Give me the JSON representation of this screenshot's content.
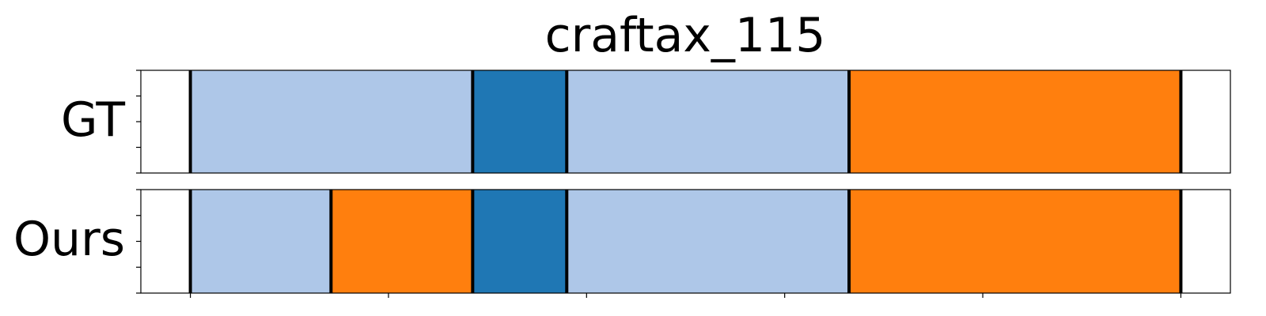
{
  "chart_data": {
    "type": "segmentation-timeline",
    "title": "craftax_115",
    "x_range": [
      -0.5,
      10.5
    ],
    "rows": [
      {
        "label": "GT",
        "segments": [
          {
            "start": 0.0,
            "end": 2.85,
            "color": "#aec7e8"
          },
          {
            "start": 2.85,
            "end": 3.8,
            "color": "#1f77b4"
          },
          {
            "start": 3.8,
            "end": 6.65,
            "color": "#aec7e8"
          },
          {
            "start": 6.65,
            "end": 10.0,
            "color": "#ff7f0e"
          }
        ],
        "boundaries": [
          0.0,
          2.85,
          3.8,
          6.65,
          10.0
        ]
      },
      {
        "label": "Ours",
        "segments": [
          {
            "start": 0.0,
            "end": 1.42,
            "color": "#aec7e8"
          },
          {
            "start": 1.42,
            "end": 2.85,
            "color": "#ff7f0e"
          },
          {
            "start": 2.85,
            "end": 3.8,
            "color": "#1f77b4"
          },
          {
            "start": 3.8,
            "end": 6.65,
            "color": "#aec7e8"
          },
          {
            "start": 6.65,
            "end": 10.0,
            "color": "#ff7f0e"
          }
        ],
        "boundaries": [
          0.0,
          1.42,
          2.85,
          3.8,
          6.65,
          10.0
        ]
      }
    ],
    "x_ticks": [
      0,
      2,
      4,
      6,
      8,
      10
    ],
    "x_tick_labels_visible": false,
    "y_tick_count": 5,
    "y_tick_labels_visible": false
  }
}
